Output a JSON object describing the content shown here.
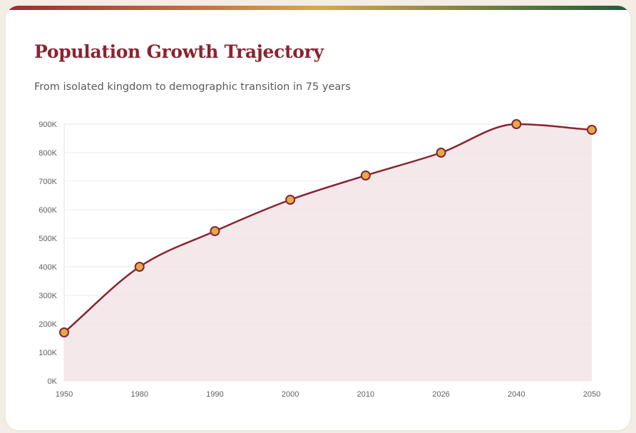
{
  "header": {
    "title": "Population Growth Trajectory",
    "subtitle": "From isolated kingdom to demographic transition in 75 years"
  },
  "colors": {
    "title": "#8b2330",
    "line": "#8b2330",
    "area_fill": "#f2e4e7",
    "marker_fill": "#e0ac4a",
    "marker_stroke": "#8b2330",
    "accent_gradient": [
      "#9b2a35",
      "#c2703f",
      "#d8a94a",
      "#8a8a45",
      "#1f5b3a"
    ]
  },
  "chart_data": {
    "type": "area",
    "title": "Population Growth Trajectory",
    "subtitle": "From isolated kingdom to demographic transition in 75 years",
    "xlabel": "",
    "ylabel": "",
    "categories": [
      "1950",
      "1980",
      "1990",
      "2000",
      "2010",
      "2026",
      "2040",
      "2050"
    ],
    "series": [
      {
        "name": "Population",
        "values": [
          170000,
          400000,
          525000,
          635000,
          720000,
          800000,
          900000,
          880000
        ]
      }
    ],
    "ylim": [
      0,
      900000
    ],
    "yticks": [
      0,
      100000,
      200000,
      300000,
      400000,
      500000,
      600000,
      700000,
      800000,
      900000
    ],
    "ytick_labels": [
      "0K",
      "100K",
      "200K",
      "300K",
      "400K",
      "500K",
      "600K",
      "700K",
      "800K",
      "900K"
    ],
    "grid": true,
    "legend": "none",
    "smooth": true,
    "markers": true
  }
}
